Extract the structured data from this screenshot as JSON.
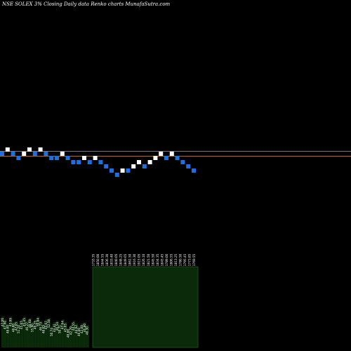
{
  "header": {
    "title": "NSE SOLEX  3% Closing Daily data  Renko  charts MunafaSutra.com"
  },
  "colors": {
    "background": "#000000",
    "up_brick": "#ffffff",
    "down_brick": "#1f6fe0",
    "reference_line": "#a0703a",
    "volume_fill": "#0a2a0a",
    "volume_border": "#1e5a1e"
  },
  "chart_data": {
    "type": "renko",
    "title": "NSE SOLEX  3% Closing Daily data  Renko  charts MunafaSutra.com",
    "brick_size_note": "3%",
    "bricks": [
      {
        "level": 0,
        "dir": "down"
      },
      {
        "level": 1,
        "dir": "up"
      },
      {
        "level": 0,
        "dir": "down"
      },
      {
        "level": -1,
        "dir": "down"
      },
      {
        "level": 0,
        "dir": "up"
      },
      {
        "level": 1,
        "dir": "up"
      },
      {
        "level": 0,
        "dir": "down"
      },
      {
        "level": 1,
        "dir": "up"
      },
      {
        "level": 0,
        "dir": "down"
      },
      {
        "level": -1,
        "dir": "down"
      },
      {
        "level": -1,
        "dir": "down"
      },
      {
        "level": 0,
        "dir": "up"
      },
      {
        "level": -1,
        "dir": "down"
      },
      {
        "level": -2,
        "dir": "down"
      },
      {
        "level": -2,
        "dir": "down"
      },
      {
        "level": -1,
        "dir": "up"
      },
      {
        "level": -2,
        "dir": "down"
      },
      {
        "level": -1,
        "dir": "up"
      },
      {
        "level": -2,
        "dir": "down"
      },
      {
        "level": -3,
        "dir": "down"
      },
      {
        "level": -4,
        "dir": "down"
      },
      {
        "level": -5,
        "dir": "down"
      },
      {
        "level": -4,
        "dir": "up"
      },
      {
        "level": -4,
        "dir": "down"
      },
      {
        "level": -3,
        "dir": "up"
      },
      {
        "level": -2,
        "dir": "up"
      },
      {
        "level": -3,
        "dir": "down"
      },
      {
        "level": -2,
        "dir": "up"
      },
      {
        "level": -1,
        "dir": "up"
      },
      {
        "level": 0,
        "dir": "up"
      },
      {
        "level": -1,
        "dir": "down"
      },
      {
        "level": 0,
        "dir": "up"
      },
      {
        "level": -1,
        "dir": "down"
      },
      {
        "level": -2,
        "dir": "down"
      },
      {
        "level": -3,
        "dir": "down"
      },
      {
        "level": -4,
        "dir": "down"
      }
    ],
    "reference_levels": [
      1,
      -1
    ],
    "volume_left": {
      "values": [
        44,
        40,
        34,
        44,
        36,
        38,
        34,
        40,
        44,
        38,
        42,
        36,
        40,
        44,
        38,
        34,
        40,
        42,
        30,
        36,
        38,
        34,
        40,
        36,
        28,
        32,
        38,
        34,
        30,
        34,
        36,
        32
      ],
      "labels": [
        "47.06",
        "47.90",
        "48.00",
        "43.99",
        "48.80",
        "47.05",
        "51.24",
        "45.65",
        "45.45",
        "46.27",
        "48.68",
        "55.90",
        "49.25",
        "50.84",
        "46.73",
        "48.65",
        "45.67",
        "52.58",
        "50.74",
        "44.41",
        "46.54",
        "50.71",
        "47.64",
        "45.65",
        "48.88",
        "42.70",
        "44.55",
        "44.92",
        "46.00",
        "42.00",
        "46.80",
        "48.30"
      ]
    },
    "volume_right": {
      "labels": [
        "1733.35",
        "1850.00",
        "1844.55",
        "1836.30",
        "1833.40",
        "1840.05",
        "1848.25",
        "1849.65",
        "1862.50",
        "1916.30",
        "1915.05",
        "1826.10",
        "1821.50",
        "1845.50",
        "1834.35",
        "1845.45",
        "1789.00",
        "1806.55",
        "1813.25",
        "1780.50",
        "1795.45",
        "1773.85",
        "1769.55"
      ]
    }
  }
}
